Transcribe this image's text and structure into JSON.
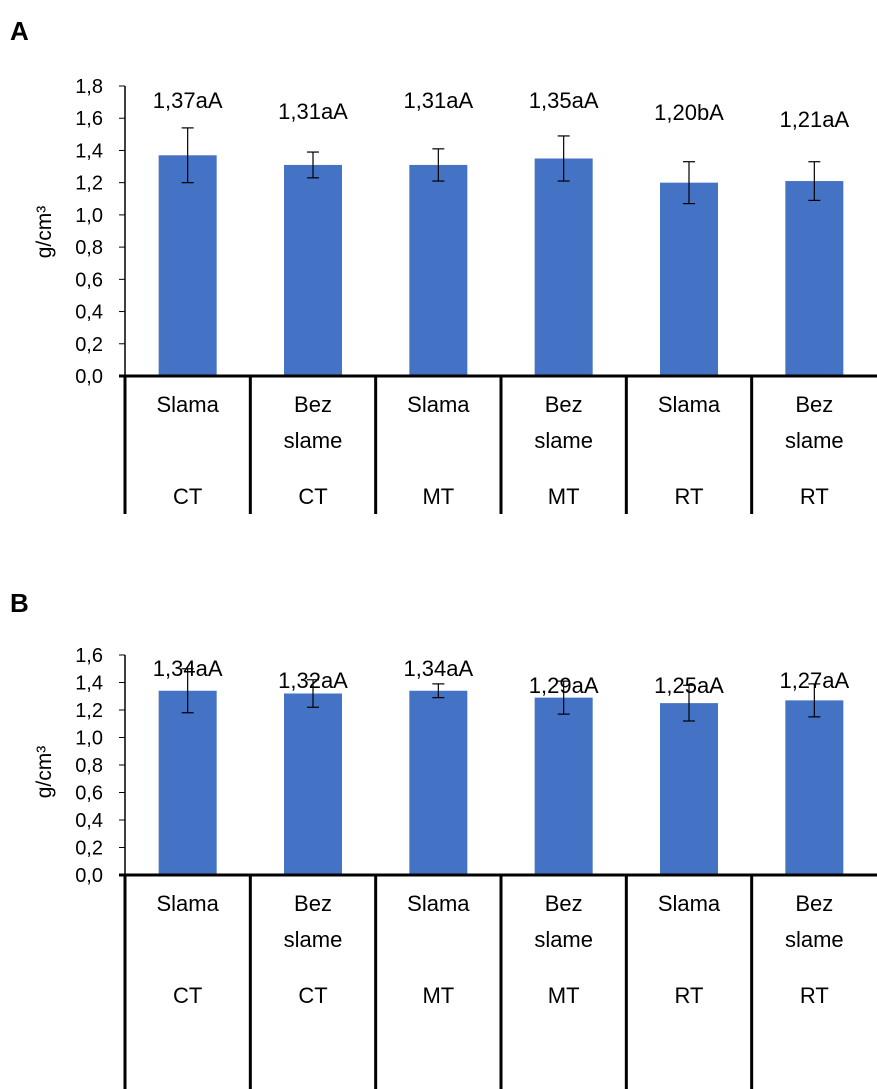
{
  "chart_data": [
    {
      "type": "bar",
      "panel_label": "A",
      "ylabel": "g/cm³",
      "ylim": [
        0,
        1.8
      ],
      "yticks": [
        "0,0",
        "0,2",
        "0,4",
        "0,6",
        "0,8",
        "1,0",
        "1,2",
        "1,4",
        "1,6",
        "1,8"
      ],
      "categories": [
        {
          "line1": "Slama",
          "line2": "",
          "group": "CT"
        },
        {
          "line1": "Bez",
          "line2": "slame",
          "group": "CT"
        },
        {
          "line1": "Slama",
          "line2": "",
          "group": "MT"
        },
        {
          "line1": "Bez",
          "line2": "slame",
          "group": "MT"
        },
        {
          "line1": "Slama",
          "line2": "",
          "group": "RT"
        },
        {
          "line1": "Bez",
          "line2": "slame",
          "group": "RT"
        }
      ],
      "values": [
        1.37,
        1.31,
        1.31,
        1.35,
        1.2,
        1.21
      ],
      "errors": [
        0.17,
        0.08,
        0.1,
        0.14,
        0.13,
        0.12
      ],
      "data_labels": [
        "1,37aA",
        "1,31aA",
        "1,31aA",
        "1,35aA",
        "1,20bA",
        "1,21aA"
      ],
      "bar_color": "#4472C4",
      "grid": false
    },
    {
      "type": "bar",
      "panel_label": "B",
      "ylabel": "g/cm³",
      "ylim": [
        0,
        1.6
      ],
      "yticks": [
        "0,0",
        "0,2",
        "0,4",
        "0,6",
        "0,8",
        "1,0",
        "1,2",
        "1,4",
        "1,6"
      ],
      "categories": [
        {
          "line1": "Slama",
          "line2": "",
          "group": "CT"
        },
        {
          "line1": "Bez",
          "line2": "slame",
          "group": "CT"
        },
        {
          "line1": "Slama",
          "line2": "",
          "group": "MT"
        },
        {
          "line1": "Bez",
          "line2": "slame",
          "group": "MT"
        },
        {
          "line1": "Slama",
          "line2": "",
          "group": "RT"
        },
        {
          "line1": "Bez",
          "line2": "slame",
          "group": "RT"
        }
      ],
      "values": [
        1.34,
        1.32,
        1.34,
        1.29,
        1.25,
        1.27
      ],
      "errors": [
        0.16,
        0.1,
        0.05,
        0.12,
        0.13,
        0.12
      ],
      "data_labels": [
        "1,34aA",
        "1,32aA",
        "1,34aA",
        "1,29aA",
        "1,25aA",
        "1,27aA"
      ],
      "bar_color": "#4472C4",
      "grid": false
    }
  ]
}
